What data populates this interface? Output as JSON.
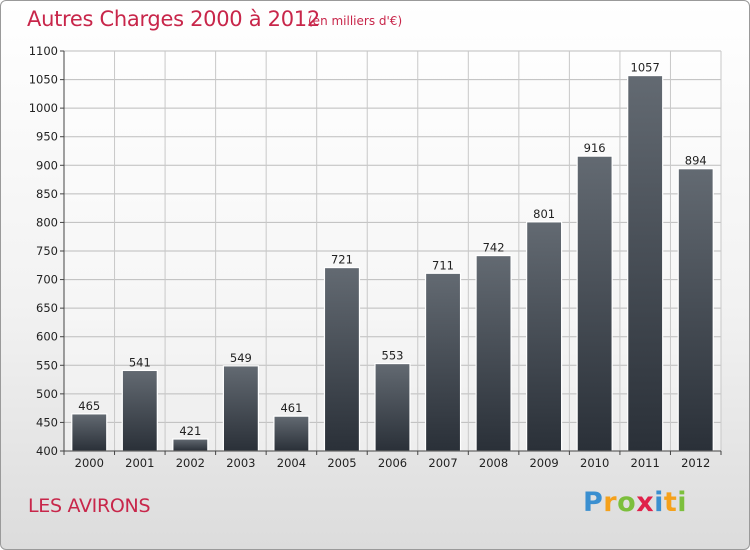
{
  "header": {
    "title": "Autres Charges 2000 à 2012",
    "subtitle": "(en milliers d'€)"
  },
  "footer": {
    "commune": "LES AVIRONS",
    "logo_letters": [
      {
        "char": "P",
        "color": "#3a8fd0"
      },
      {
        "char": "r",
        "color": "#f5a11b"
      },
      {
        "char": "o",
        "color": "#7cbf3c"
      },
      {
        "char": "x",
        "color": "#e0214a"
      },
      {
        "char": "i",
        "color": "#3a8fd0"
      },
      {
        "char": "t",
        "color": "#f5a11b"
      },
      {
        "char": "i",
        "color": "#7cbf3c"
      }
    ]
  },
  "chart_data": {
    "type": "bar",
    "title": "Autres Charges 2000 à 2012",
    "subtitle": "(en milliers d'€)",
    "categories": [
      "2000",
      "2001",
      "2002",
      "2003",
      "2004",
      "2005",
      "2006",
      "2007",
      "2008",
      "2009",
      "2010",
      "2011",
      "2012"
    ],
    "values": [
      465,
      541,
      421,
      549,
      461,
      721,
      553,
      711,
      742,
      801,
      916,
      1057,
      894
    ],
    "ylim": [
      400,
      1100
    ],
    "yticks": [
      400,
      450,
      500,
      550,
      600,
      650,
      700,
      750,
      800,
      850,
      900,
      950,
      1000,
      1050,
      1100
    ],
    "grid": true,
    "data_labels": true,
    "bar_color_top": "#636a72",
    "bar_color_bottom": "#2a3038"
  }
}
